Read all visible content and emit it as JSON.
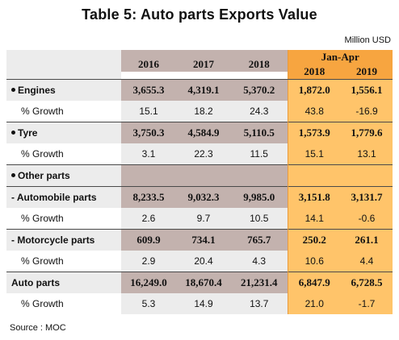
{
  "title": "Table 5: Auto parts Exports Value",
  "unit": "Million USD",
  "source": "Source : MOC",
  "header": {
    "years": [
      "2016",
      "2017",
      "2018"
    ],
    "period_label": "Jan-Apr",
    "period_years": [
      "2018",
      "2019"
    ]
  },
  "rows": [
    {
      "label": "Engines",
      "values": [
        "3,655.3",
        "4,319.1",
        "5,370.2",
        "1,872.0",
        "1,556.1"
      ]
    },
    {
      "label": "% Growth",
      "values": [
        "15.1",
        "18.2",
        "24.3",
        "43.8",
        "-16.9"
      ]
    },
    {
      "label": "Tyre",
      "values": [
        "3,750.3",
        "4,584.9",
        "5,110.5",
        "1,573.9",
        "1,779.6"
      ]
    },
    {
      "label": "% Growth",
      "values": [
        "3.1",
        "22.3",
        "11.5",
        "15.1",
        "13.1"
      ]
    },
    {
      "label": "Other parts",
      "values": [
        "",
        "",
        "",
        "",
        ""
      ]
    },
    {
      "label": "- Automobile parts",
      "values": [
        "8,233.5",
        "9,032.3",
        "9,985.0",
        "3,151.8",
        "3,131.7"
      ]
    },
    {
      "label": "% Growth",
      "values": [
        "2.6",
        "9.7",
        "10.5",
        "14.1",
        "-0.6"
      ]
    },
    {
      "label": "- Motorcycle parts",
      "values": [
        "609.9",
        "734.1",
        "765.7",
        "250.2",
        "261.1"
      ]
    },
    {
      "label": "% Growth",
      "values": [
        "2.9",
        "20.4",
        "4.3",
        "10.6",
        "4.4"
      ]
    },
    {
      "label": "Auto parts",
      "values": [
        "16,249.0",
        "18,670.4",
        "21,231.4",
        "6,847.9",
        "6,728.5"
      ]
    },
    {
      "label": "% Growth",
      "values": [
        "5.3",
        "14.9",
        "13.7",
        "21.0",
        "-1.7"
      ]
    }
  ]
}
